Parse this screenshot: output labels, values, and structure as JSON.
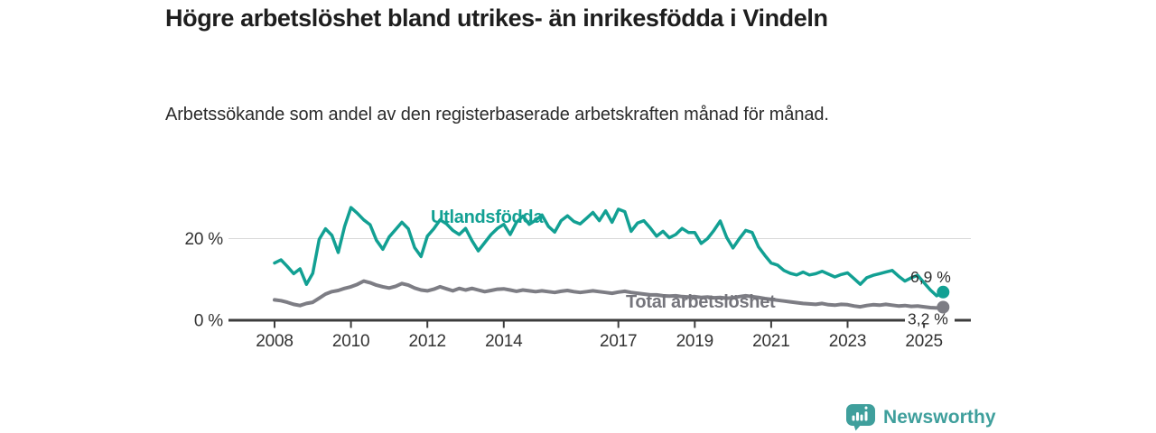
{
  "header": {
    "title": "Högre arbetslöshet bland utrikes- än inrikesfödda i Vindeln",
    "subtitle": "Arbetssökande som andel av den registerbaserade arbetskraften månad för månad."
  },
  "footer": {
    "brand": "Newsworthy",
    "logo_icon": "newsworthy-speech-bubble-bar-chart-icon",
    "brand_color": "#3f9f9c"
  },
  "chart_data": {
    "type": "line",
    "unit": "%",
    "grid_on": true,
    "grid_color": "#d9d9d9",
    "axis_color": "#3d3d3d",
    "x_start": 2008.0,
    "x_step": 0.166667,
    "x_ticks": [
      2008,
      2010,
      2012,
      2014,
      2017,
      2019,
      2021,
      2023,
      2025
    ],
    "y_ticks": [
      {
        "value": 0,
        "label": "0 %"
      },
      {
        "value": 20,
        "label": "20 %"
      }
    ],
    "ylim": [
      0,
      30
    ],
    "xlim": [
      2008,
      2025.6
    ],
    "series": [
      {
        "name": "Utlandsfödda",
        "color": "#12a093",
        "width": 3.5,
        "end_value": 6.9,
        "end_label": "6,9 %",
        "values": [
          14.0,
          14.8,
          13.2,
          11.4,
          12.6,
          8.8,
          11.5,
          19.8,
          22.4,
          20.8,
          16.6,
          23.0,
          27.6,
          26.2,
          24.6,
          23.4,
          19.6,
          17.4,
          20.4,
          22.2,
          24.0,
          22.4,
          17.8,
          15.6,
          20.6,
          22.4,
          24.6,
          23.6,
          22.0,
          21.0,
          22.5,
          19.5,
          17.0,
          19.0,
          21.0,
          22.5,
          23.5,
          21.0,
          24.0,
          25.5,
          23.5,
          24.5,
          25.8,
          23.0,
          21.6,
          24.4,
          25.6,
          24.2,
          23.6,
          25.0,
          26.4,
          24.4,
          26.8,
          24.0,
          27.2,
          26.6,
          21.8,
          23.8,
          24.4,
          22.6,
          20.6,
          21.8,
          20.2,
          21.0,
          22.5,
          21.5,
          21.5,
          18.8,
          20.0,
          22.0,
          24.3,
          20.3,
          17.7,
          20.0,
          22.0,
          21.5,
          18.0,
          15.9,
          14.0,
          13.5,
          12.2,
          11.5,
          11.1,
          11.8,
          11.1,
          11.4,
          12.0,
          11.3,
          10.6,
          11.2,
          11.6,
          10.2,
          8.8,
          10.4,
          11.0,
          11.4,
          11.8,
          12.2,
          10.8,
          9.6,
          10.4,
          11.0,
          9.2,
          7.4,
          6.0,
          6.9
        ]
      },
      {
        "name": "Total arbetslöshet",
        "color": "#7d7d84",
        "label_color": "#75757c",
        "width": 4,
        "end_value": 3.2,
        "end_label": "3,2 %",
        "values": [
          5.0,
          4.8,
          4.4,
          3.9,
          3.6,
          4.1,
          4.4,
          5.4,
          6.4,
          7.0,
          7.3,
          7.8,
          8.2,
          8.8,
          9.6,
          9.2,
          8.6,
          8.2,
          7.9,
          8.3,
          9.0,
          8.6,
          7.9,
          7.4,
          7.2,
          7.6,
          8.2,
          7.7,
          7.2,
          7.8,
          7.4,
          7.8,
          7.4,
          7.0,
          7.3,
          7.6,
          7.7,
          7.4,
          7.1,
          7.4,
          7.2,
          7.0,
          7.2,
          7.0,
          6.8,
          7.1,
          7.3,
          7.0,
          6.8,
          7.0,
          7.2,
          7.0,
          6.8,
          6.6,
          6.9,
          7.1,
          6.8,
          6.6,
          6.4,
          6.2,
          6.2,
          6.0,
          5.9,
          6.0,
          5.8,
          5.7,
          5.8,
          5.6,
          5.7,
          5.5,
          5.6,
          5.4,
          5.5,
          5.8,
          6.0,
          5.8,
          5.6,
          5.3,
          5.1,
          4.9,
          4.7,
          4.5,
          4.3,
          4.1,
          4.0,
          3.9,
          4.1,
          3.8,
          3.7,
          3.9,
          3.8,
          3.5,
          3.3,
          3.6,
          3.8,
          3.7,
          3.9,
          3.7,
          3.5,
          3.6,
          3.4,
          3.5,
          3.3,
          3.1,
          3.0,
          3.2
        ]
      }
    ]
  }
}
